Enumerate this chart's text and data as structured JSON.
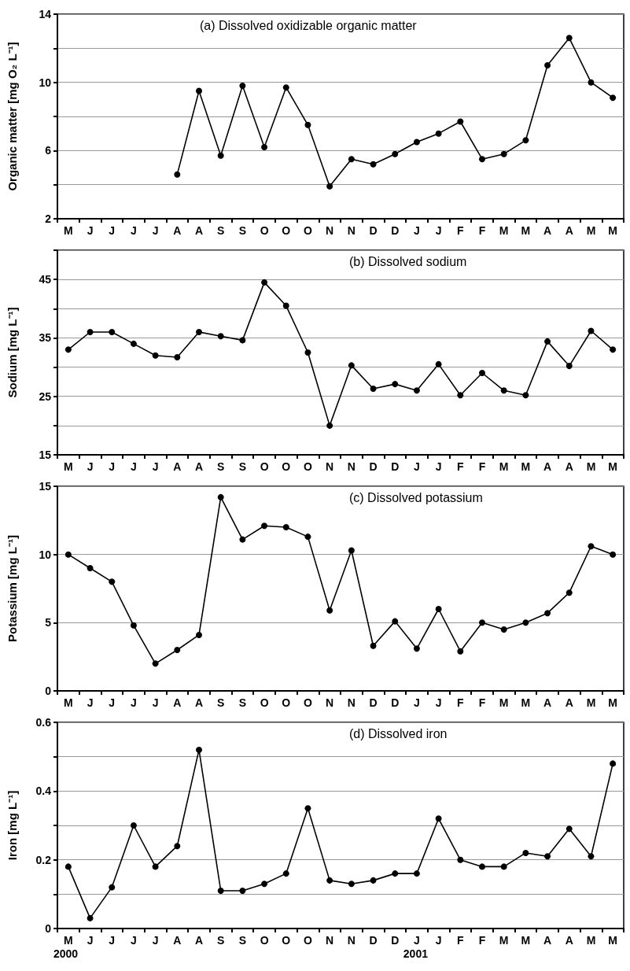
{
  "chart_data": [
    {
      "type": "line",
      "title": "(a) Dissolved oxidizable organic matter",
      "ylabel": "Organic matter [mg O₂ L⁻¹]",
      "categories": [
        "M",
        "J",
        "J",
        "J",
        "J",
        "A",
        "A",
        "S",
        "S",
        "O",
        "O",
        "O",
        "N",
        "N",
        "D",
        "D",
        "J",
        "J",
        "F",
        "F",
        "M",
        "M",
        "A",
        "A",
        "M",
        "M"
      ],
      "series": [
        {
          "color": "#000000",
          "values": [
            null,
            null,
            null,
            null,
            null,
            4.6,
            9.5,
            5.7,
            9.8,
            6.2,
            9.7,
            7.5,
            3.9,
            5.5,
            5.2,
            5.8,
            6.5,
            7.0,
            7.7,
            5.5,
            5.8,
            6.6,
            11.0,
            12.6,
            10.0,
            9.1
          ]
        }
      ],
      "ylim": [
        2,
        14
      ],
      "yticks": [
        2,
        {
          "value": 4,
          "label": null
        },
        6,
        {
          "value": 8,
          "label": null
        },
        10,
        {
          "value": 12,
          "label": null
        },
        14
      ],
      "grid": "y",
      "marker": "circle",
      "line_style": "solid"
    },
    {
      "type": "line",
      "title": "(b) Dissolved sodium",
      "ylabel": "Sodium [mg L⁻¹]",
      "categories": [
        "M",
        "J",
        "J",
        "J",
        "J",
        "A",
        "A",
        "S",
        "S",
        "O",
        "O",
        "O",
        "N",
        "N",
        "D",
        "D",
        "J",
        "J",
        "F",
        "F",
        "M",
        "M",
        "A",
        "A",
        "M",
        "M"
      ],
      "series": [
        {
          "color": "#000000",
          "values": [
            33,
            36,
            36,
            34,
            32,
            31.7,
            36,
            35.3,
            34.6,
            44.5,
            40.5,
            32.5,
            20,
            30.3,
            26.3,
            27.1,
            26,
            30.5,
            25.2,
            29,
            26,
            25.2,
            34.4,
            30.2,
            36.2,
            33
          ]
        }
      ],
      "ylim": [
        15,
        50
      ],
      "yticks": [
        15,
        {
          "value": 20,
          "label": null
        },
        25,
        {
          "value": 30,
          "label": null
        },
        35,
        {
          "value": 40,
          "label": null
        },
        45,
        {
          "value": 50,
          "label": null
        }
      ],
      "grid": "y",
      "marker": "circle",
      "line_style": "solid"
    },
    {
      "type": "line",
      "title": "(c) Dissolved potassium",
      "ylabel": "Potassium [mg L⁻¹]",
      "categories": [
        "M",
        "J",
        "J",
        "J",
        "J",
        "A",
        "A",
        "S",
        "S",
        "O",
        "O",
        "O",
        "N",
        "N",
        "D",
        "D",
        "J",
        "J",
        "F",
        "F",
        "M",
        "M",
        "A",
        "A",
        "M",
        "M"
      ],
      "series": [
        {
          "color": "#000000",
          "values": [
            10,
            9,
            8,
            4.8,
            2,
            3,
            4.1,
            14.2,
            11.1,
            12.1,
            12,
            11.3,
            5.9,
            10.3,
            3.3,
            5.1,
            3.1,
            6,
            2.9,
            5,
            4.5,
            5,
            5.7,
            7.2,
            10.6,
            10
          ]
        }
      ],
      "ylim": [
        0,
        15
      ],
      "yticks": [
        0,
        5,
        10,
        15
      ],
      "grid": "y",
      "marker": "circle",
      "line_style": "solid"
    },
    {
      "type": "line",
      "title": "(d) Dissolved iron",
      "ylabel": "Iron [mg L⁻¹]",
      "categories": [
        "M",
        "J",
        "J",
        "J",
        "J",
        "A",
        "A",
        "S",
        "S",
        "O",
        "O",
        "O",
        "N",
        "N",
        "D",
        "D",
        "J",
        "J",
        "F",
        "F",
        "M",
        "M",
        "A",
        "A",
        "M",
        "M"
      ],
      "series": [
        {
          "color": "#000000",
          "values": [
            0.18,
            0.03,
            0.12,
            0.3,
            0.18,
            0.24,
            0.52,
            0.11,
            0.11,
            0.13,
            0.16,
            0.35,
            0.14,
            0.13,
            0.14,
            0.16,
            0.16,
            0.32,
            0.2,
            0.18,
            0.18,
            0.22,
            0.21,
            0.29,
            0.21,
            0.48
          ]
        }
      ],
      "ylim": [
        0,
        0.6
      ],
      "yticks": [
        0,
        {
          "value": 0.1,
          "label": null
        },
        0.2,
        {
          "value": 0.3,
          "label": null
        },
        0.4,
        {
          "value": 0.5,
          "label": null
        },
        0.6
      ],
      "grid": "y",
      "marker": "circle",
      "line_style": "solid",
      "annotations": [
        "2000",
        "2001"
      ]
    }
  ]
}
